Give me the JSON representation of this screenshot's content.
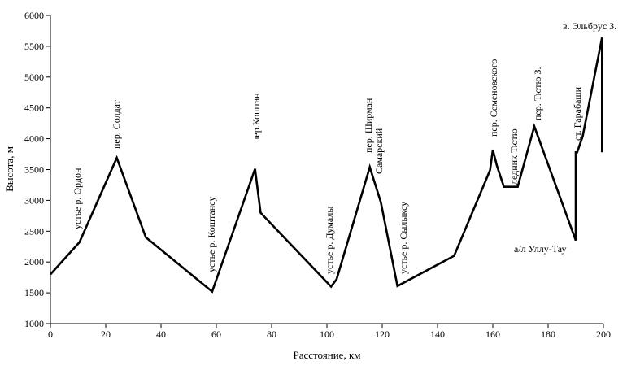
{
  "chart_data": {
    "type": "line",
    "title": "",
    "xlabel": "Расстояние, км",
    "ylabel": "Высота, м",
    "xlim": [
      0,
      200
    ],
    "ylim": [
      1000,
      6000
    ],
    "x_ticks": [
      "0",
      "20",
      "40",
      "60",
      "80",
      "100",
      "120",
      "140",
      "160",
      "180",
      "200"
    ],
    "y_ticks": [
      "1000",
      "1500",
      "2000",
      "2500",
      "3000",
      "3500",
      "4000",
      "4500",
      "5000",
      "5500",
      "6000"
    ],
    "grid": false,
    "legend": "none",
    "line_color": "#000000",
    "series": [
      {
        "x": [
          0,
          10.5,
          24,
          34.5,
          58.5,
          74,
          76,
          101.5,
          103.5,
          115.5,
          119.5,
          125.5,
          146,
          159,
          160,
          161.5,
          164,
          169,
          175,
          190,
          190,
          190.5,
          192.5,
          199.5,
          199.5
        ],
        "y": [
          1800,
          2320,
          3690,
          2400,
          1520,
          3510,
          2800,
          1600,
          1720,
          3540,
          2970,
          1610,
          2100,
          3490,
          3820,
          3560,
          3220,
          3220,
          4200,
          2350,
          3780,
          3780,
          4040,
          5640,
          3780
        ]
      }
    ],
    "annotations": [
      "устье р. Ордон",
      "пер. Солдат",
      "устье р. Коштансу",
      "пер.Коштан",
      "устье р. Думалы",
      "пер. Ширман",
      "Самарский",
      "устье р. Сылыксу",
      "пер. Семеновского",
      "ледник Тютю",
      "пер. Тютю З.",
      "ст. Гарабаши",
      "а/л Уллу-Тау",
      "в. Эльбрус З."
    ]
  }
}
